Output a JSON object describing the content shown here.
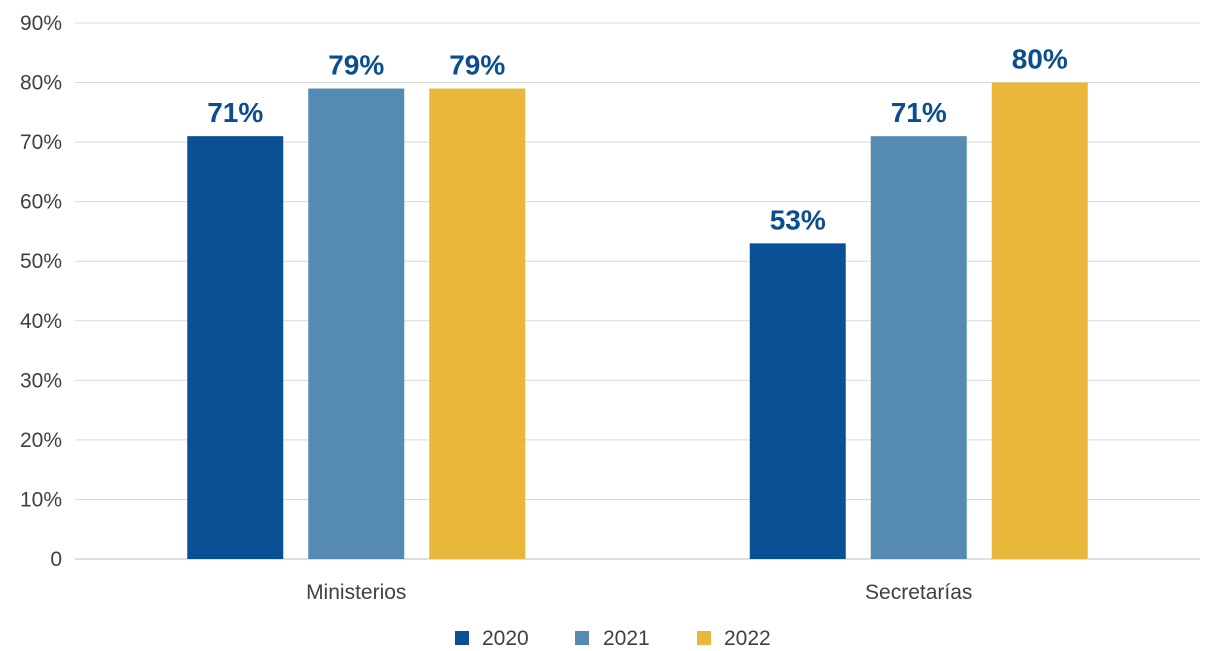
{
  "chart_data": {
    "type": "bar",
    "categories": [
      "Ministerios",
      "Secretarías"
    ],
    "series": [
      {
        "name": "2020",
        "color": "#0a5094",
        "values": [
          71,
          53
        ],
        "labels": [
          "71%",
          "53%"
        ]
      },
      {
        "name": "2021",
        "color": "#558bb3",
        "values": [
          79,
          71
        ],
        "labels": [
          "79%",
          "71%"
        ]
      },
      {
        "name": "2022",
        "color": "#e9b73a",
        "values": [
          79,
          80
        ],
        "labels": [
          "79%",
          "80%"
        ]
      }
    ],
    "ylim": [
      0,
      90
    ],
    "yticks": [
      {
        "value": 0,
        "label": "0"
      },
      {
        "value": 10,
        "label": "10%"
      },
      {
        "value": 20,
        "label": "20%"
      },
      {
        "value": 30,
        "label": "30%"
      },
      {
        "value": 40,
        "label": "40%"
      },
      {
        "value": 50,
        "label": "50%"
      },
      {
        "value": 60,
        "label": "60%"
      },
      {
        "value": 70,
        "label": "70%"
      },
      {
        "value": 80,
        "label": "80%"
      },
      {
        "value": 90,
        "label": "90%"
      }
    ],
    "grid": true,
    "legend_position": "bottom",
    "title": "",
    "xlabel": "",
    "ylabel": ""
  }
}
